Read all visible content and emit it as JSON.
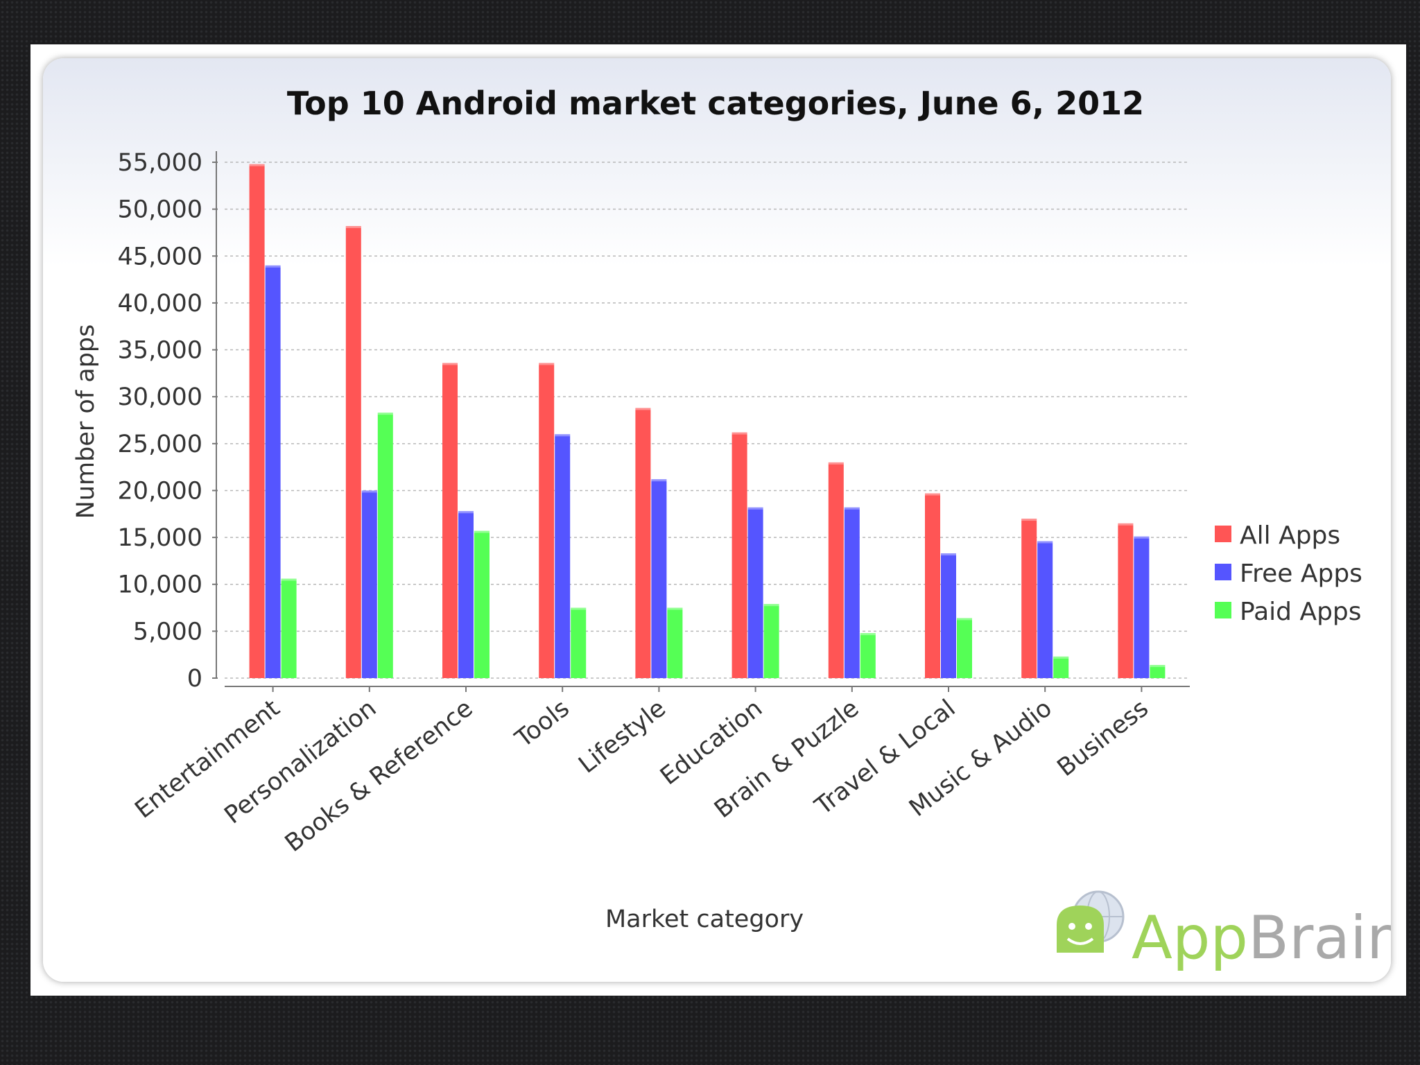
{
  "chart_data": {
    "type": "bar",
    "title": "Top 10 Android market categories, June 6, 2012",
    "xlabel": "Market category",
    "ylabel": "Number of apps",
    "ylim": [
      0,
      55000
    ],
    "yticks": [
      {
        "value": 0,
        "label": "0"
      },
      {
        "value": 5000,
        "label": "5,000"
      },
      {
        "value": 10000,
        "label": "10,000"
      },
      {
        "value": 15000,
        "label": "15,000"
      },
      {
        "value": 20000,
        "label": "20,000"
      },
      {
        "value": 25000,
        "label": "25,000"
      },
      {
        "value": 30000,
        "label": "30,000"
      },
      {
        "value": 35000,
        "label": "35,000"
      },
      {
        "value": 40000,
        "label": "40,000"
      },
      {
        "value": 45000,
        "label": "45,000"
      },
      {
        "value": 50000,
        "label": "50,000"
      },
      {
        "value": 55000,
        "label": "55,000"
      }
    ],
    "grid": true,
    "legend_position": "right",
    "categories": [
      "Entertainment",
      "Personalization",
      "Books & Reference",
      "Tools",
      "Lifestyle",
      "Education",
      "Brain & Puzzle",
      "Travel & Local",
      "Music & Audio",
      "Business"
    ],
    "series": [
      {
        "name": "All Apps",
        "color": "#ff5555",
        "values": [
          54800,
          48200,
          33600,
          33600,
          28800,
          26200,
          23000,
          19700,
          17000,
          16500
        ]
      },
      {
        "name": "Free Apps",
        "color": "#5555ff",
        "values": [
          44000,
          20000,
          17800,
          26000,
          21200,
          18200,
          18200,
          13300,
          14600,
          15100
        ]
      },
      {
        "name": "Paid Apps",
        "color": "#55ff55",
        "values": [
          10600,
          28300,
          15700,
          7500,
          7500,
          7900,
          4800,
          6400,
          2300,
          1400
        ]
      }
    ]
  },
  "logo": {
    "text_app": "App",
    "text_brain": "Brain",
    "icon": "android-globe-icon",
    "color_green": "#9fd35a",
    "color_gray": "#a9a9a9"
  }
}
